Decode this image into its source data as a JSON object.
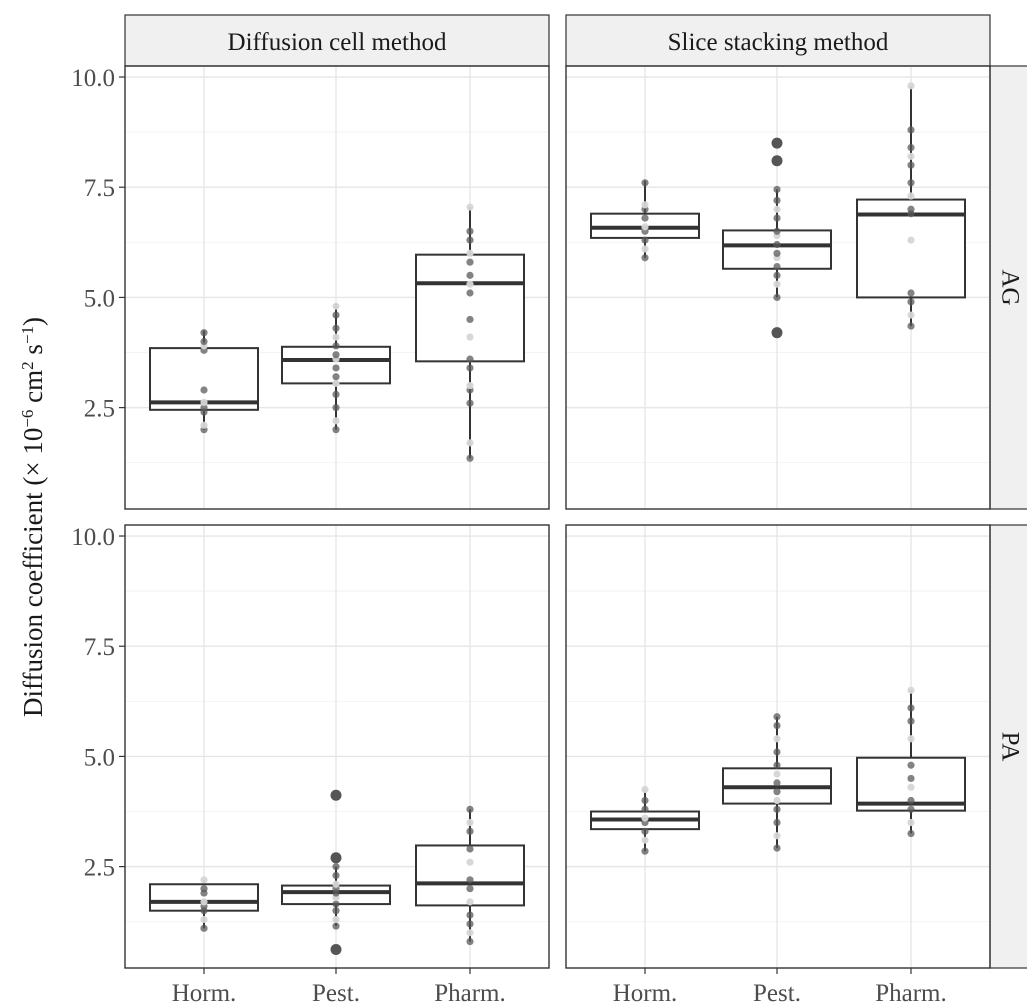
{
  "chart_data": {
    "type": "boxplot",
    "ylabel": "Diffusion coefficient (× 10⁻⁶ cm² s⁻¹)",
    "ylabel_parts": {
      "pre": "Diffusion coefficient (× 10",
      "exp1": "−6",
      "mid": " cm",
      "exp2": "2",
      "mid2": " s",
      "exp3": "−1",
      "post": ")"
    },
    "categories": [
      "Horm.",
      "Pest.",
      "Pharm."
    ],
    "yticks": [
      "2.5",
      "5.0",
      "7.5",
      "10.0"
    ],
    "ylim": [
      0.2,
      10.25
    ],
    "columns": [
      "Diffusion cell method",
      "Slice stacking method"
    ],
    "rows": [
      "AG",
      "PA"
    ],
    "grid": true,
    "panels": [
      {
        "column": "Diffusion cell method",
        "row": "AG",
        "boxes": [
          {
            "category": "Horm.",
            "whisker_low": 2.0,
            "q1": 2.45,
            "median": 2.62,
            "q3": 3.85,
            "whisker_high": 4.25,
            "outliers": [],
            "points": [
              2.0,
              2.1,
              2.4,
              2.5,
              2.62,
              2.9,
              3.8,
              3.9,
              4.0,
              4.2
            ]
          },
          {
            "category": "Pest.",
            "whisker_low": 2.0,
            "q1": 3.05,
            "median": 3.58,
            "q3": 3.88,
            "whisker_high": 4.85,
            "outliers": [],
            "points": [
              2.0,
              2.2,
              2.5,
              2.8,
              3.05,
              3.2,
              3.4,
              3.6,
              3.7,
              3.9,
              4.1,
              4.3,
              4.6,
              4.8
            ]
          },
          {
            "category": "Pharm.",
            "whisker_low": 1.35,
            "q1": 3.55,
            "median": 5.32,
            "q3": 5.97,
            "whisker_high": 7.05,
            "outliers": [],
            "points": [
              1.35,
              1.7,
              2.6,
              2.9,
              3.0,
              3.4,
              3.6,
              4.1,
              4.5,
              5.1,
              5.3,
              5.5,
              5.8,
              6.0,
              6.3,
              6.5,
              7.05
            ]
          }
        ]
      },
      {
        "column": "Slice stacking method",
        "row": "AG",
        "boxes": [
          {
            "category": "Horm.",
            "whisker_low": 5.9,
            "q1": 6.35,
            "median": 6.58,
            "q3": 6.9,
            "whisker_high": 7.65,
            "outliers": [],
            "points": [
              5.9,
              6.1,
              6.3,
              6.5,
              6.6,
              6.8,
              7.0,
              7.1,
              7.6
            ]
          },
          {
            "category": "Pest.",
            "whisker_low": 5.0,
            "q1": 5.65,
            "median": 6.18,
            "q3": 6.52,
            "whisker_high": 7.45,
            "outliers": [
              4.2,
              8.1,
              8.5
            ],
            "points": [
              5.0,
              5.3,
              5.5,
              5.7,
              5.9,
              6.0,
              6.2,
              6.4,
              6.5,
              6.8,
              7.0,
              7.2,
              7.45
            ]
          },
          {
            "category": "Pharm.",
            "whisker_low": 4.35,
            "q1": 5.0,
            "median": 6.88,
            "q3": 7.22,
            "whisker_high": 9.8,
            "outliers": [],
            "points": [
              4.35,
              4.6,
              4.9,
              5.1,
              6.3,
              6.9,
              7.0,
              7.3,
              7.6,
              8.0,
              8.2,
              8.4,
              8.8,
              9.8
            ]
          }
        ]
      },
      {
        "column": "Diffusion cell method",
        "row": "PA",
        "boxes": [
          {
            "category": "Horm.",
            "whisker_low": 1.1,
            "q1": 1.5,
            "median": 1.7,
            "q3": 2.1,
            "whisker_high": 2.2,
            "outliers": [],
            "points": [
              1.1,
              1.3,
              1.5,
              1.6,
              1.7,
              1.9,
              2.0,
              2.2
            ]
          },
          {
            "category": "Pest.",
            "whisker_low": 1.15,
            "q1": 1.65,
            "median": 1.92,
            "q3": 2.07,
            "whisker_high": 2.5,
            "outliers": [
              0.62,
              2.7,
              4.12
            ],
            "points": [
              1.15,
              1.3,
              1.5,
              1.65,
              1.8,
              1.9,
              2.0,
              2.1,
              2.3,
              2.5
            ]
          },
          {
            "category": "Pharm.",
            "whisker_low": 0.8,
            "q1": 1.62,
            "median": 2.12,
            "q3": 2.98,
            "whisker_high": 3.8,
            "outliers": [],
            "points": [
              0.8,
              1.0,
              1.2,
              1.4,
              1.7,
              2.0,
              2.2,
              2.6,
              2.9,
              3.3,
              3.5,
              3.8
            ]
          }
        ]
      },
      {
        "column": "Slice stacking method",
        "row": "PA",
        "boxes": [
          {
            "category": "Horm.",
            "whisker_low": 2.85,
            "q1": 3.35,
            "median": 3.57,
            "q3": 3.75,
            "whisker_high": 4.25,
            "outliers": [],
            "points": [
              2.85,
              3.1,
              3.3,
              3.5,
              3.6,
              3.8,
              4.0,
              4.25
            ]
          },
          {
            "category": "Pest.",
            "whisker_low": 2.92,
            "q1": 3.93,
            "median": 4.3,
            "q3": 4.73,
            "whisker_high": 5.9,
            "outliers": [],
            "points": [
              2.92,
              3.2,
              3.5,
              3.8,
              4.0,
              4.2,
              4.4,
              4.6,
              4.8,
              5.1,
              5.4,
              5.7,
              5.9
            ]
          },
          {
            "category": "Pharm.",
            "whisker_low": 3.25,
            "q1": 3.77,
            "median": 3.93,
            "q3": 4.97,
            "whisker_high": 6.5,
            "outliers": [],
            "points": [
              3.25,
              3.5,
              3.8,
              4.0,
              4.3,
              4.5,
              4.8,
              5.4,
              5.8,
              6.1,
              6.5
            ]
          }
        ]
      }
    ]
  }
}
